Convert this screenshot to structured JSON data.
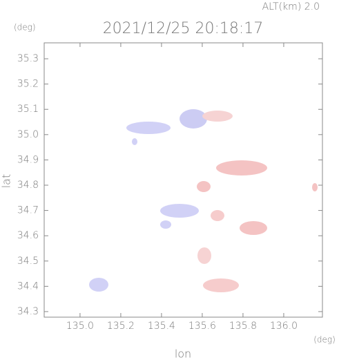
{
  "chart_data": {
    "type": "map",
    "title": "2021/12/25 20:18:17",
    "altitude_label": "ALT(km)  2.0",
    "y_unit": "(deg)",
    "x_unit": "(deg)",
    "xlabel": "lon",
    "ylabel": "lat",
    "xlim": [
      134.824,
      136.19
    ],
    "ylim": [
      34.278,
      35.363
    ],
    "xticks": [
      {
        "value": 135,
        "label": "135.0"
      },
      135.2,
      135.4,
      135.6,
      135.8,
      {
        "value": 136,
        "label": "136.0"
      }
    ],
    "yticks": [
      34.3,
      34.4,
      34.5,
      34.6,
      34.7,
      34.8,
      34.9,
      {
        "value": 35,
        "label": "35.0"
      },
      35.1,
      35.2,
      35.3
    ]
  }
}
